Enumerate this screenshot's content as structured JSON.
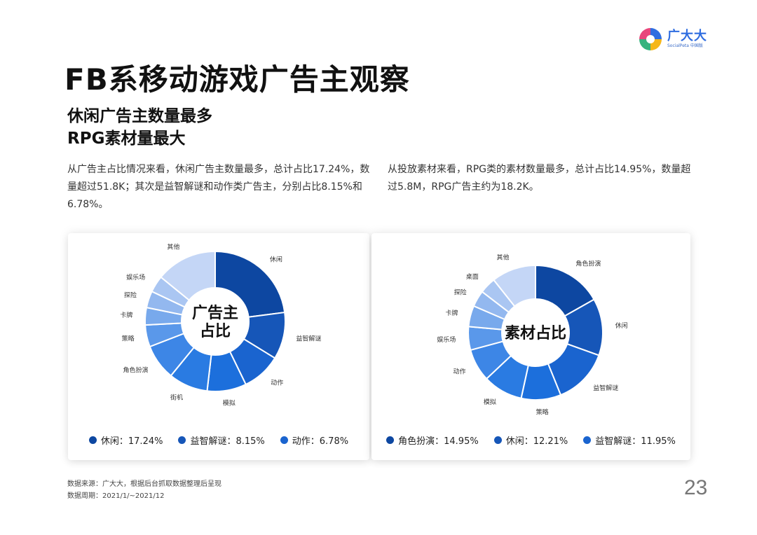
{
  "brand": {
    "name": "广大大",
    "sub": "SocialPeta 中国版"
  },
  "title": "FB系移动游戏广告主观察",
  "subtitle": {
    "line1": "休闲广告主数量最多",
    "line2": "RPG素材量最大"
  },
  "desc": {
    "left": "从广告主占比情况来看，休闲广告主数量最多，总计占比17.24%，数量超过51.8K；其次是益智解谜和动作类广告主，分别占比8.15%和6.78%。",
    "right": "从投放素材来看，RPG类的素材数量最多，总计占比14.95%，数量超过5.8M，RPG广告主约为18.2K。"
  },
  "chart_data": [
    {
      "type": "pie",
      "donut": true,
      "center_label": [
        "广告主",
        "占比"
      ],
      "slices": [
        {
          "label": "休闲",
          "value": 17.24,
          "color": "#0d47a1"
        },
        {
          "label": "益智解谜",
          "value": 8.15,
          "color": "#1656b8"
        },
        {
          "label": "动作",
          "value": 6.78,
          "color": "#1a64cf"
        },
        {
          "label": "模拟",
          "value": 6.8,
          "color": "#1c6fdc"
        },
        {
          "label": "街机",
          "value": 6.8,
          "color": "#2a7be2"
        },
        {
          "label": "角色扮演",
          "value": 6.2,
          "color": "#3d86e6"
        },
        {
          "label": "策略",
          "value": 3.8,
          "color": "#5a98ea"
        },
        {
          "label": "卡牌",
          "value": 3.0,
          "color": "#78a9ec"
        },
        {
          "label": "探险",
          "value": 2.9,
          "color": "#93b8ef"
        },
        {
          "label": "娱乐场",
          "value": 2.9,
          "color": "#aac6f2"
        },
        {
          "label": "其他",
          "value": 10.6,
          "color": "#c4d6f6"
        }
      ],
      "legend": [
        {
          "label": "休闲",
          "value": "17.24%",
          "color": "#0d47a1"
        },
        {
          "label": "益智解谜",
          "value": "8.15%",
          "color": "#1656b8"
        },
        {
          "label": "动作",
          "value": "6.78%",
          "color": "#1a64cf"
        }
      ]
    },
    {
      "type": "pie",
      "donut": true,
      "center_label": [
        "素材占比"
      ],
      "slices": [
        {
          "label": "角色扮演",
          "value": 14.95,
          "color": "#0d47a1"
        },
        {
          "label": "休闲",
          "value": 12.21,
          "color": "#1656b8"
        },
        {
          "label": "益智解谜",
          "value": 11.95,
          "color": "#1a64cf"
        },
        {
          "label": "策略",
          "value": 8.5,
          "color": "#1c6fdc"
        },
        {
          "label": "模拟",
          "value": 8.5,
          "color": "#2a7be2"
        },
        {
          "label": "动作",
          "value": 7.0,
          "color": "#3d86e6"
        },
        {
          "label": "娱乐场",
          "value": 5.0,
          "color": "#5a98ea"
        },
        {
          "label": "卡牌",
          "value": 4.5,
          "color": "#78a9ec"
        },
        {
          "label": "探险",
          "value": 3.5,
          "color": "#93b8ef"
        },
        {
          "label": "桌面",
          "value": 3.5,
          "color": "#aac6f2"
        },
        {
          "label": "其他",
          "value": 9.5,
          "color": "#c4d6f6"
        }
      ],
      "legend": [
        {
          "label": "角色扮演",
          "value": "14.95%",
          "color": "#0d47a1"
        },
        {
          "label": "休闲",
          "value": "12.21%",
          "color": "#1656b8"
        },
        {
          "label": "益智解谜",
          "value": "11.95%",
          "color": "#1a64cf"
        }
      ]
    }
  ],
  "footnote": {
    "source": "数据来源：广大大，根据后台抓取数据整理后呈现",
    "period": "数据周期：2021/1/~2021/12"
  },
  "page_number": "23"
}
